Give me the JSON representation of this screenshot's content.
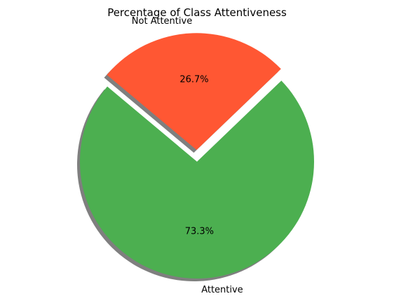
{
  "chart_data": {
    "type": "pie",
    "title": "Percentage of Class Attentiveness",
    "categories": [
      "Attentive",
      "Not Attentive"
    ],
    "values": [
      73.3,
      26.7
    ],
    "value_labels": [
      "73.3%",
      "26.7%"
    ],
    "colors": [
      "#4CAF50",
      "#FF5733"
    ],
    "explode": [
      0,
      0.1
    ],
    "shadow": true,
    "start_angle": 140
  }
}
